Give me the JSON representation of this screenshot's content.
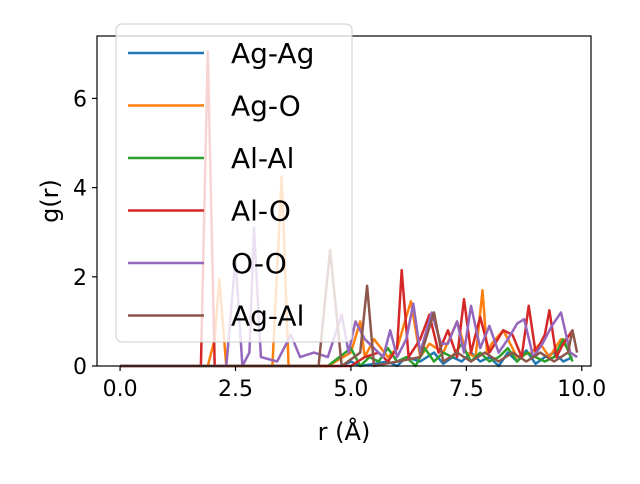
{
  "chart_data": {
    "type": "line",
    "xlabel": "r (Å)",
    "ylabel": "g(r)",
    "xlim": [
      -0.5,
      10.2
    ],
    "ylim": [
      0,
      7.4
    ],
    "xticks": [
      "0.0",
      "2.5",
      "5.0",
      "7.5",
      "10.0"
    ],
    "yticks": [
      "0",
      "2",
      "4",
      "6"
    ],
    "grid": false,
    "legend_position": "top-left",
    "series": [
      {
        "name": "Ag-Ag",
        "color": "#1f77b4",
        "x": [
          0,
          1.0,
          2.0,
          2.5,
          3.0,
          3.5,
          4.0,
          4.5,
          4.8,
          5.0,
          5.2,
          5.5,
          5.8,
          6.0,
          6.2,
          6.5,
          6.8,
          7.0,
          7.2,
          7.4,
          7.6,
          7.8,
          8.0,
          8.2,
          8.4,
          8.6,
          8.8,
          9.0,
          9.2,
          9.4,
          9.6,
          9.8
        ],
        "y": [
          0,
          0,
          0,
          0,
          0,
          0,
          0,
          0,
          0,
          0.1,
          0,
          0.05,
          0.1,
          0,
          0.2,
          0.1,
          0.3,
          0.05,
          0.2,
          0.1,
          0.3,
          0.1,
          0.2,
          0,
          0.3,
          0.1,
          0.35,
          0.05,
          0.2,
          0.3,
          0.1,
          0.2
        ]
      },
      {
        "name": "Ag-O",
        "color": "#ff7f0e",
        "x": [
          0,
          1.9,
          2.05,
          2.15,
          2.3,
          3.3,
          3.5,
          3.65,
          4.0,
          4.5,
          5.0,
          5.2,
          5.3,
          5.5,
          5.8,
          6.0,
          6.3,
          6.5,
          6.7,
          7.0,
          7.3,
          7.5,
          7.7,
          7.85,
          7.95,
          8.05,
          8.3,
          8.6,
          8.9,
          9.1,
          9.3,
          9.55,
          9.75,
          9.9
        ],
        "y": [
          0,
          0,
          0.6,
          1.95,
          0,
          0,
          4.25,
          0,
          0,
          0,
          0.3,
          1.0,
          0.2,
          0.6,
          0.2,
          0.4,
          1.45,
          0.2,
          0.5,
          0.3,
          1.0,
          0.3,
          0.2,
          1.7,
          0.3,
          0.5,
          0.8,
          0.2,
          0.3,
          0.5,
          0.2,
          0.6,
          0.3,
          0.2
        ]
      },
      {
        "name": "Al-Al",
        "color": "#2ca02c",
        "x": [
          0,
          3.0,
          3.5,
          4.0,
          4.5,
          5.0,
          5.2,
          5.4,
          5.6,
          5.8,
          6.0,
          6.2,
          6.4,
          6.6,
          6.8,
          7.0,
          7.2,
          7.4,
          7.6,
          7.8,
          8.0,
          8.2,
          8.4,
          8.6,
          8.8,
          9.0,
          9.2,
          9.4,
          9.6,
          9.8
        ],
        "y": [
          0,
          0,
          0,
          0,
          0,
          0.4,
          0,
          0.2,
          0.1,
          0.4,
          0.1,
          0.2,
          0,
          0.4,
          0.1,
          0.3,
          0.2,
          0.5,
          0.1,
          0.3,
          0.1,
          0.2,
          0.4,
          0.1,
          0.3,
          0.2,
          0.1,
          0.2,
          0.6,
          0.1
        ]
      },
      {
        "name": "Al-O",
        "color": "#d62728",
        "x": [
          0,
          1.75,
          1.9,
          2.05,
          3.0,
          5.0,
          5.3,
          5.6,
          5.8,
          6.0,
          6.1,
          6.25,
          6.5,
          6.7,
          6.9,
          7.1,
          7.3,
          7.45,
          7.6,
          7.8,
          8.0,
          8.3,
          8.5,
          8.7,
          8.85,
          9.0,
          9.2,
          9.3,
          9.45,
          9.6,
          9.8
        ],
        "y": [
          0,
          0,
          7.05,
          0,
          0,
          0,
          0.2,
          0.3,
          0.1,
          0.4,
          2.15,
          0.2,
          0.6,
          1.15,
          0.3,
          0.8,
          0.2,
          1.5,
          0.3,
          1.1,
          0.3,
          0.8,
          0.7,
          0.2,
          1.35,
          0.3,
          0.7,
          1.25,
          0.2,
          0.5,
          0.8
        ]
      },
      {
        "name": "O-O",
        "color": "#9467bd",
        "x": [
          0,
          2.3,
          2.5,
          2.65,
          2.8,
          2.9,
          3.05,
          3.4,
          3.7,
          3.9,
          4.2,
          4.5,
          4.8,
          4.95,
          5.1,
          5.3,
          5.5,
          5.7,
          5.85,
          6.0,
          6.2,
          6.35,
          6.5,
          6.75,
          6.95,
          7.1,
          7.3,
          7.45,
          7.6,
          7.8,
          8.0,
          8.2,
          8.4,
          8.6,
          8.75,
          8.95,
          9.15,
          9.35,
          9.55,
          9.75,
          9.9
        ],
        "y": [
          0,
          0,
          2.4,
          0,
          0.3,
          3.1,
          0.2,
          0.1,
          0.7,
          0.2,
          0.3,
          0.2,
          1.15,
          0.3,
          1.0,
          0.6,
          0.4,
          0.2,
          0.8,
          0.2,
          0.6,
          1.4,
          0.3,
          1.2,
          0.5,
          0.5,
          1.0,
          0.3,
          1.35,
          0.4,
          0.9,
          0.3,
          0.6,
          0.95,
          1.05,
          0.2,
          0.5,
          0.9,
          1.2,
          0.3,
          0.2
        ]
      },
      {
        "name": "Ag-Al",
        "color": "#8c564b",
        "x": [
          0,
          4.3,
          4.55,
          4.8,
          5.2,
          5.35,
          5.5,
          6.5,
          6.8,
          7.0,
          7.3,
          7.6,
          7.9,
          8.2,
          8.5,
          8.8,
          9.1,
          9.4,
          9.7,
          9.8,
          9.9
        ],
        "y": [
          0,
          0,
          2.6,
          0,
          0.3,
          1.8,
          0,
          0.2,
          1.2,
          0.1,
          0.3,
          0.1,
          0.3,
          0.1,
          0.3,
          0.1,
          0.3,
          0.1,
          0.3,
          0.8,
          0.3
        ]
      }
    ]
  }
}
